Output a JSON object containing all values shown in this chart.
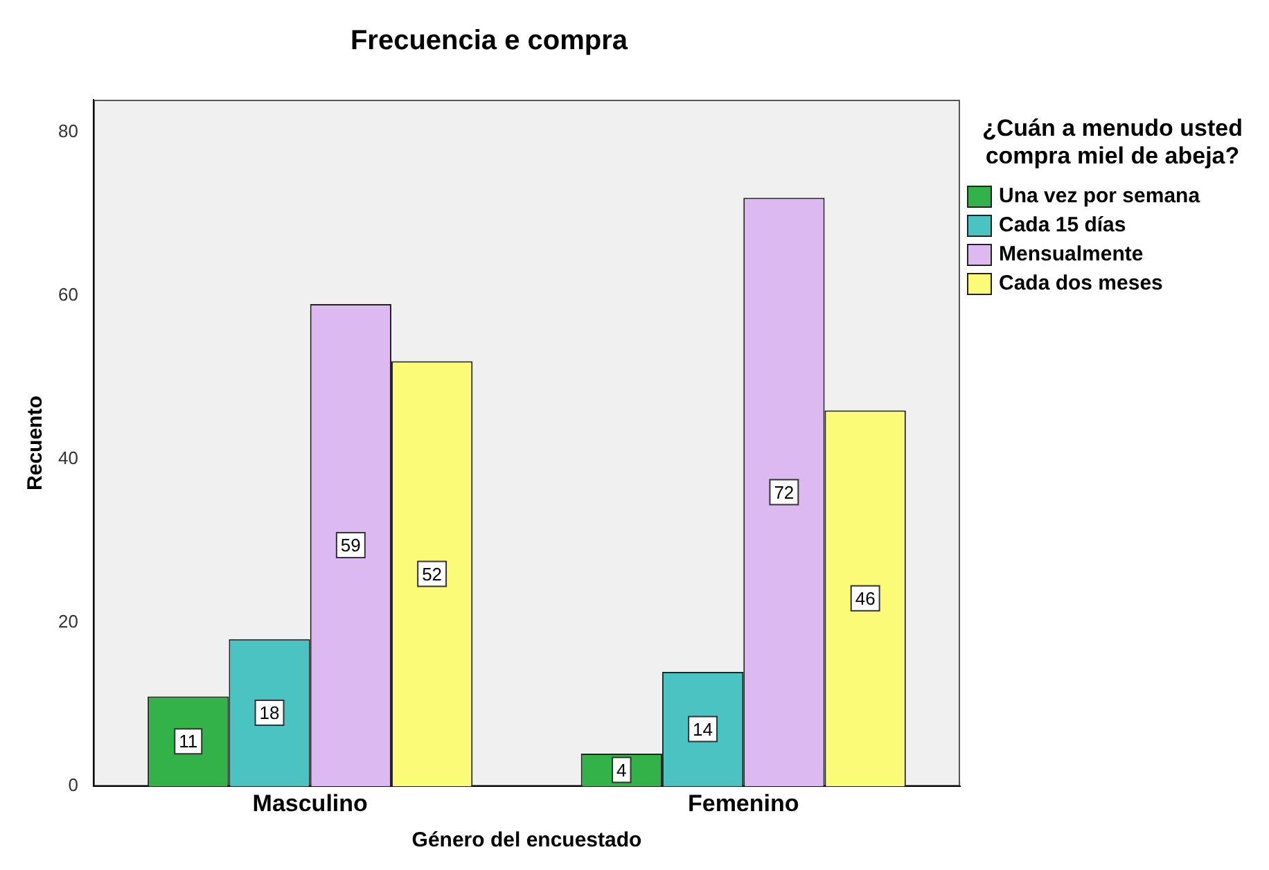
{
  "chart_data": {
    "type": "bar",
    "title": "Frecuencia e compra",
    "xlabel": "Género del encuestado",
    "ylabel": "Recuento",
    "legend_title": "¿Cuán a menudo usted compra miel de abeja?",
    "categories": [
      "Masculino",
      "Femenino"
    ],
    "series": [
      {
        "name": "Una vez por semana",
        "color": "#33b24a",
        "values": [
          11,
          4
        ]
      },
      {
        "name": "Cada 15 días",
        "color": "#4cc3c3",
        "values": [
          18,
          14
        ]
      },
      {
        "name": "Mensualmente",
        "color": "#dcb9f0",
        "values": [
          59,
          72
        ]
      },
      {
        "name": "Cada dos meses",
        "color": "#fbfb78",
        "values": [
          52,
          46
        ]
      }
    ],
    "ylim": [
      0,
      84
    ],
    "yticks": [
      0,
      20,
      40,
      60,
      80
    ],
    "grid": false,
    "legend": "right",
    "data_labels": true
  }
}
